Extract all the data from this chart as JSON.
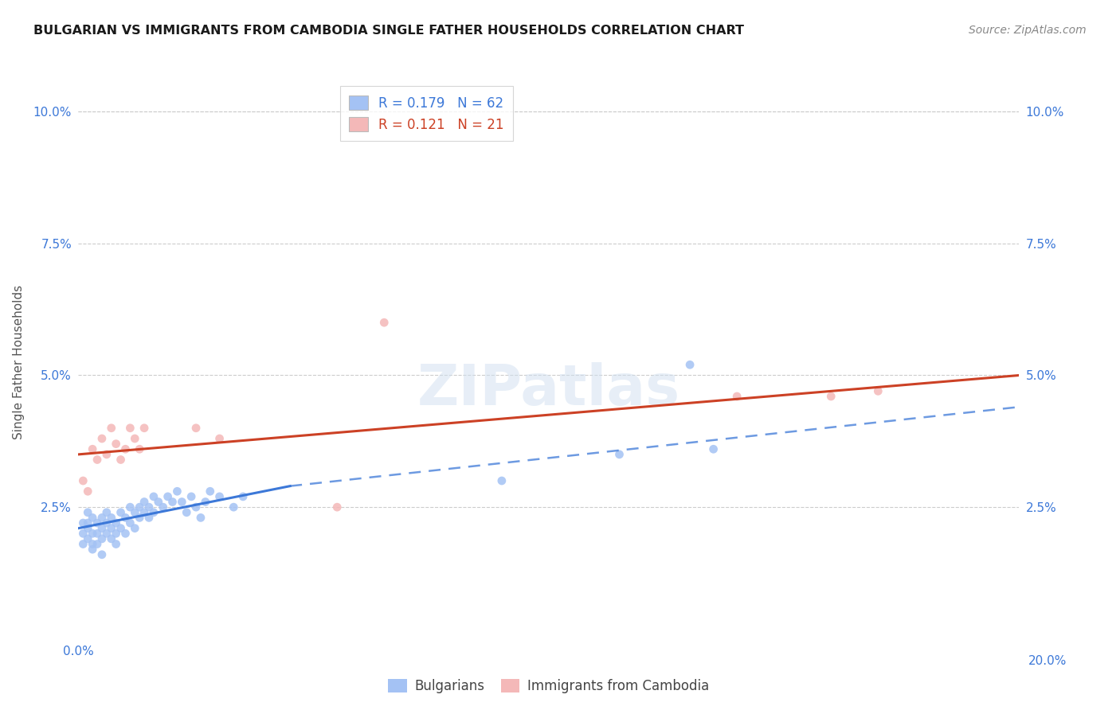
{
  "title": "BULGARIAN VS IMMIGRANTS FROM CAMBODIA SINGLE FATHER HOUSEHOLDS CORRELATION CHART",
  "source": "Source: ZipAtlas.com",
  "ylabel": "Single Father Households",
  "xlim": [
    0.0,
    0.2
  ],
  "ylim": [
    0.0,
    0.105
  ],
  "background_color": "#ffffff",
  "grid_color": "#cccccc",
  "blue_color": "#a4c2f4",
  "pink_color": "#f4b8b8",
  "blue_line_color": "#3c78d8",
  "pink_line_color": "#cc4125",
  "r_blue": 0.179,
  "n_blue": 62,
  "r_pink": 0.121,
  "n_pink": 21,
  "legend_label_blue": "Bulgarians",
  "legend_label_pink": "Immigrants from Cambodia",
  "blue_scatter_x": [
    0.001,
    0.001,
    0.001,
    0.002,
    0.002,
    0.002,
    0.002,
    0.003,
    0.003,
    0.003,
    0.003,
    0.004,
    0.004,
    0.004,
    0.005,
    0.005,
    0.005,
    0.005,
    0.006,
    0.006,
    0.006,
    0.007,
    0.007,
    0.007,
    0.008,
    0.008,
    0.008,
    0.009,
    0.009,
    0.01,
    0.01,
    0.011,
    0.011,
    0.012,
    0.012,
    0.013,
    0.013,
    0.014,
    0.014,
    0.015,
    0.015,
    0.016,
    0.016,
    0.017,
    0.018,
    0.019,
    0.02,
    0.021,
    0.022,
    0.023,
    0.024,
    0.025,
    0.026,
    0.027,
    0.028,
    0.03,
    0.033,
    0.035,
    0.09,
    0.115,
    0.13,
    0.135
  ],
  "blue_scatter_y": [
    0.022,
    0.02,
    0.018,
    0.024,
    0.022,
    0.021,
    0.019,
    0.023,
    0.02,
    0.018,
    0.017,
    0.022,
    0.02,
    0.018,
    0.023,
    0.021,
    0.019,
    0.016,
    0.022,
    0.02,
    0.024,
    0.023,
    0.021,
    0.019,
    0.022,
    0.02,
    0.018,
    0.024,
    0.021,
    0.023,
    0.02,
    0.025,
    0.022,
    0.024,
    0.021,
    0.025,
    0.023,
    0.026,
    0.024,
    0.025,
    0.023,
    0.027,
    0.024,
    0.026,
    0.025,
    0.027,
    0.026,
    0.028,
    0.026,
    0.024,
    0.027,
    0.025,
    0.023,
    0.026,
    0.028,
    0.027,
    0.025,
    0.027,
    0.03,
    0.035,
    0.052,
    0.036
  ],
  "pink_scatter_x": [
    0.001,
    0.002,
    0.003,
    0.004,
    0.005,
    0.006,
    0.007,
    0.008,
    0.009,
    0.01,
    0.011,
    0.012,
    0.013,
    0.014,
    0.025,
    0.03,
    0.055,
    0.065,
    0.14,
    0.16,
    0.17
  ],
  "pink_scatter_y": [
    0.03,
    0.028,
    0.036,
    0.034,
    0.038,
    0.035,
    0.04,
    0.037,
    0.034,
    0.036,
    0.04,
    0.038,
    0.036,
    0.04,
    0.04,
    0.038,
    0.025,
    0.06,
    0.046,
    0.046,
    0.047
  ],
  "blue_line_x0": 0.0,
  "blue_line_y0": 0.021,
  "blue_line_x1": 0.045,
  "blue_line_y1": 0.029,
  "blue_line_dash_x1": 0.2,
  "blue_line_dash_y1": 0.044,
  "pink_line_x0": 0.0,
  "pink_line_y0": 0.035,
  "pink_line_x1": 0.2,
  "pink_line_y1": 0.05
}
